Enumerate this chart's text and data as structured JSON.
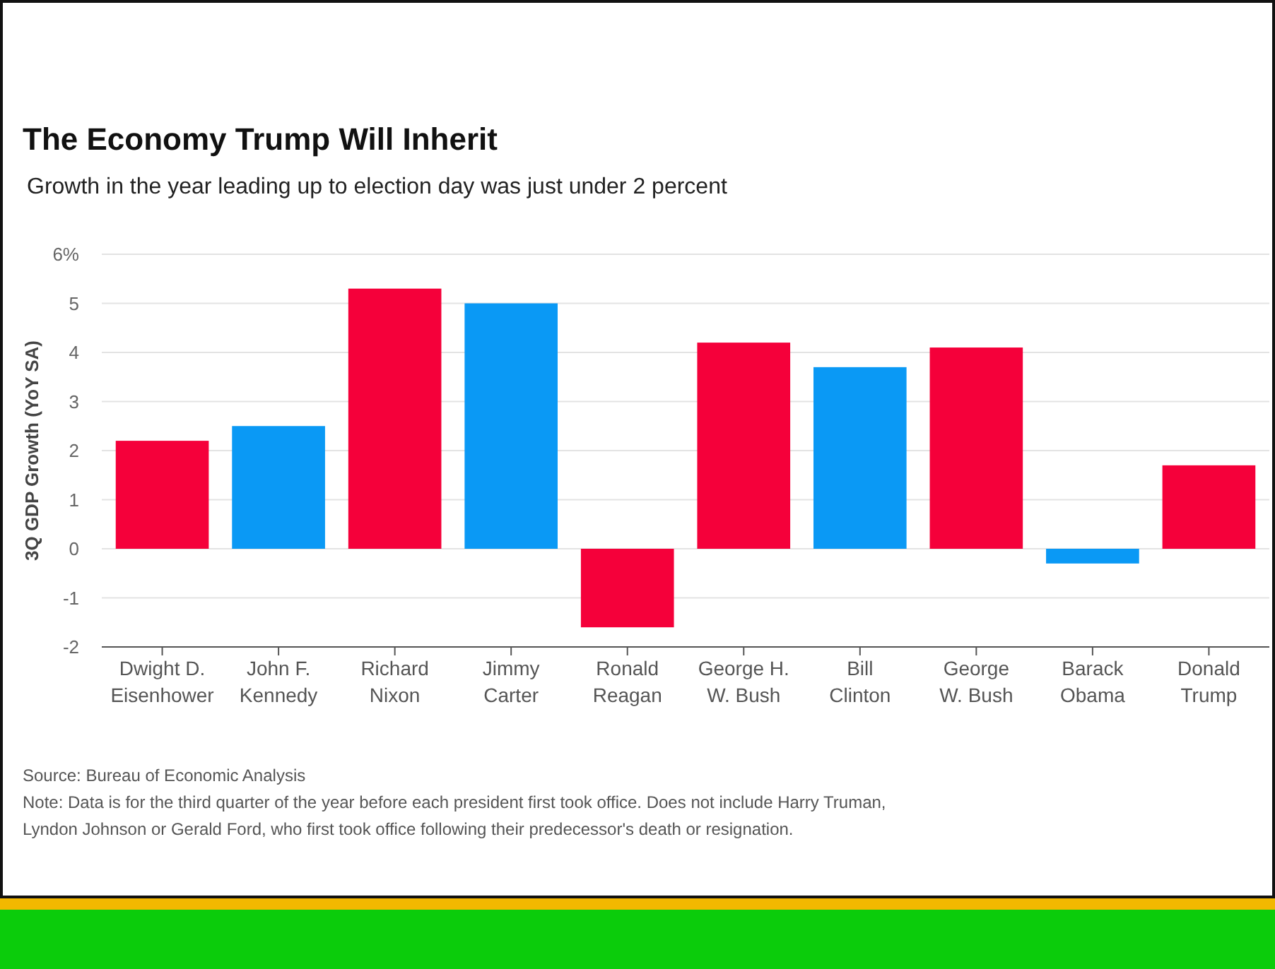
{
  "chart_data": {
    "type": "bar",
    "title": "The Economy Trump Will Inherit",
    "subtitle": "Growth in the year leading up to election day was just under 2 percent",
    "ylabel": "3Q GDP Growth (YoY SA)",
    "categories": [
      "Dwight D.\nEisenhower",
      "John F.\nKennedy",
      "Richard\nNixon",
      "Jimmy\nCarter",
      "Ronald\nReagan",
      "George H.\nW. Bush",
      "Bill\nClinton",
      "George\nW. Bush",
      "Barack\nObama",
      "Donald\nTrump"
    ],
    "values": [
      2.2,
      2.5,
      5.3,
      5.0,
      -1.6,
      4.2,
      3.7,
      4.1,
      -0.3,
      1.7
    ],
    "colors": [
      "#f5003a",
      "#0a99f5",
      "#f5003a",
      "#0a99f5",
      "#f5003a",
      "#f5003a",
      "#0a99f5",
      "#f5003a",
      "#0a99f5",
      "#f5003a"
    ],
    "ylim": [
      -2,
      6
    ],
    "yticks": [
      -2,
      -1,
      0,
      1,
      2,
      3,
      4,
      {
        "value": 5,
        "label": "5"
      },
      {
        "value": 6,
        "label": "6%"
      }
    ],
    "grid": "y",
    "annotations": [
      "Source: Bureau of Economic Analysis",
      "Note: Data is for the third quarter of the year before each president first took office. Does not include Harry Truman,\nLyndon Johnson or Gerald Ford, who first took office following their predecessor's death or resignation."
    ]
  }
}
